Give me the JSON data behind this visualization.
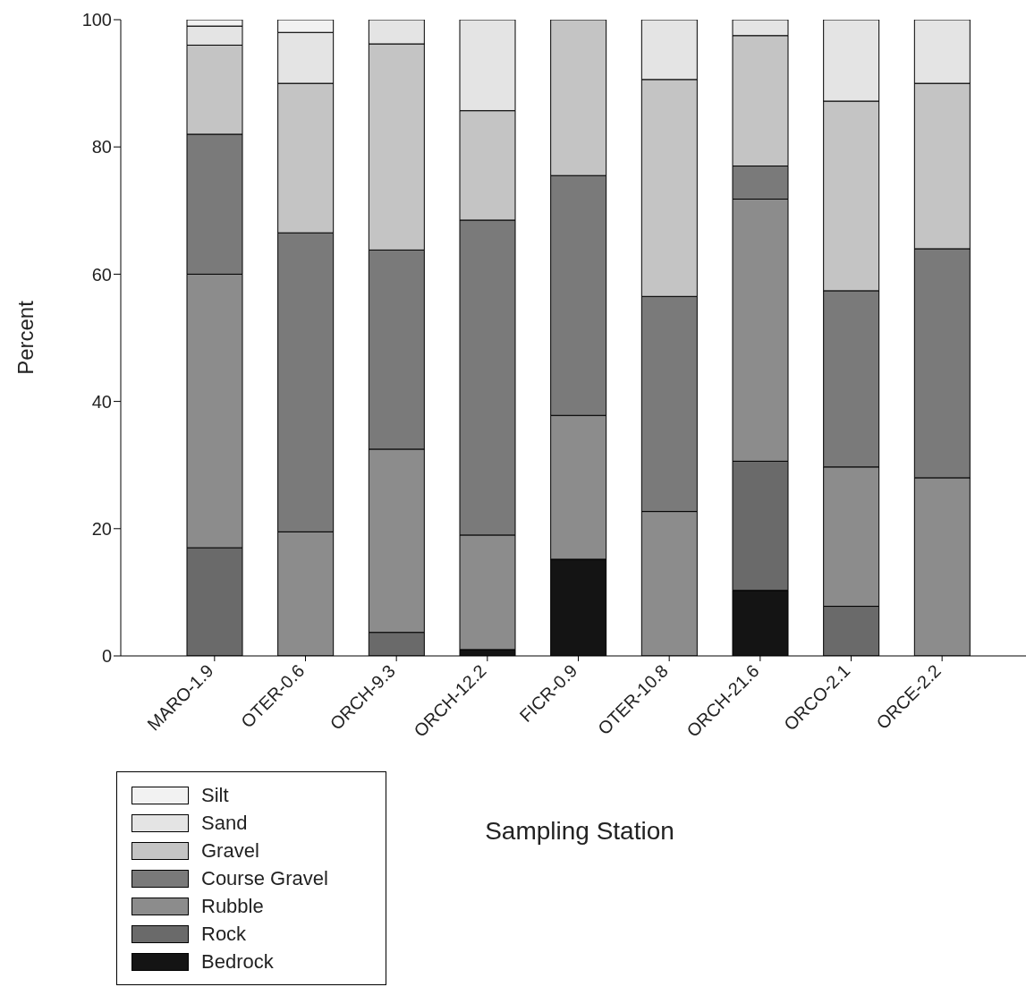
{
  "chart_data": {
    "type": "bar",
    "stacked": true,
    "xlabel": "Sampling Station",
    "ylabel": "Percent",
    "categories": [
      "MARO-1.9",
      "OTER-0.6",
      "ORCH-9.3",
      "ORCH-12.2",
      "FICR-0.9",
      "OTER-10.8",
      "ORCH-21.6",
      "ORCO-2.1",
      "ORCE-2.2"
    ],
    "series": [
      {
        "name": "Bedrock",
        "color": "#141414",
        "values": [
          0,
          0,
          0,
          1,
          15.2,
          0,
          10.3,
          0,
          0
        ]
      },
      {
        "name": "Rock",
        "color": "#6a6a6a",
        "values": [
          17,
          0,
          3.7,
          0,
          0,
          0,
          20.3,
          7.8,
          0
        ]
      },
      {
        "name": "Rubble",
        "color": "#8c8c8c",
        "values": [
          43,
          19.5,
          28.8,
          18,
          22.6,
          22.7,
          41.2,
          21.9,
          28
        ]
      },
      {
        "name": "Course Gravel",
        "color": "#7a7a7a",
        "values": [
          22,
          47,
          31.3,
          49.5,
          37.7,
          33.8,
          5.2,
          27.7,
          36
        ]
      },
      {
        "name": "Gravel",
        "color": "#c4c4c4",
        "values": [
          14,
          23.5,
          32.4,
          17.2,
          24.5,
          34.1,
          20.5,
          29.8,
          26
        ]
      },
      {
        "name": "Sand",
        "color": "#e4e4e4",
        "values": [
          3,
          8,
          3.8,
          14.3,
          0,
          9.4,
          2.5,
          12.8,
          10
        ]
      },
      {
        "name": "Silt",
        "color": "#f2f2f2",
        "values": [
          1,
          2,
          0,
          0,
          0,
          0,
          0,
          0,
          0
        ]
      }
    ],
    "ylim": [
      0,
      100
    ],
    "yticks": [
      0,
      20,
      40,
      60,
      80,
      100
    ],
    "legend": "bottom left"
  }
}
